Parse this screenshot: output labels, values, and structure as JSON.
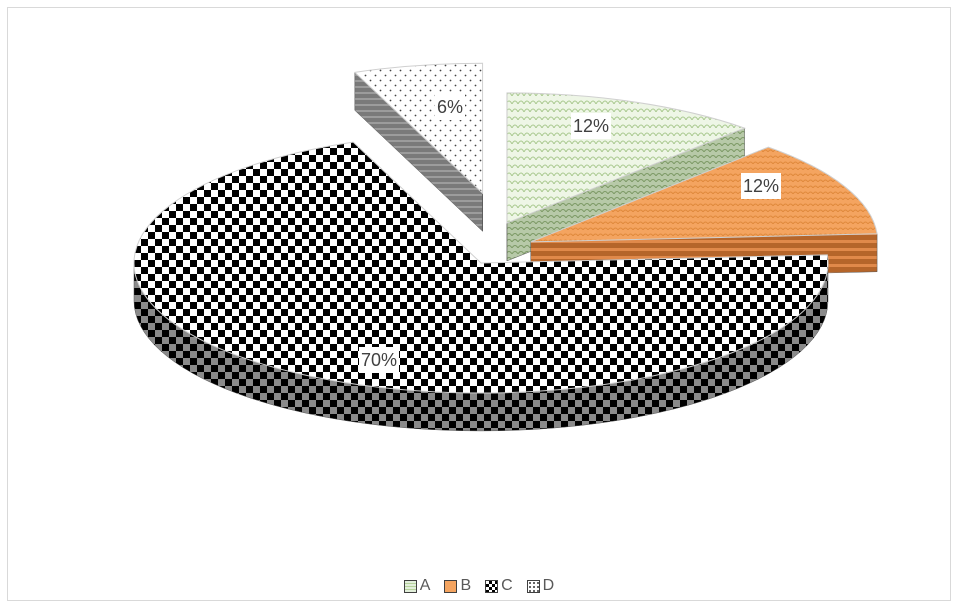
{
  "chart_data": {
    "type": "pie",
    "style": "3d-exploded",
    "categories": [
      "A",
      "B",
      "C",
      "D"
    ],
    "values": [
      12,
      12,
      70,
      6
    ],
    "data_labels": [
      "12%",
      "12%",
      "70%",
      "6%"
    ],
    "legend_position": "bottom",
    "colors": {
      "A": "#e2efda",
      "B": "#f4a460",
      "C": "#000000",
      "D": "#ffffff"
    },
    "patterns": {
      "A": "scales",
      "B": "solid-orange-stripes",
      "C": "checkerboard",
      "D": "dots"
    }
  }
}
